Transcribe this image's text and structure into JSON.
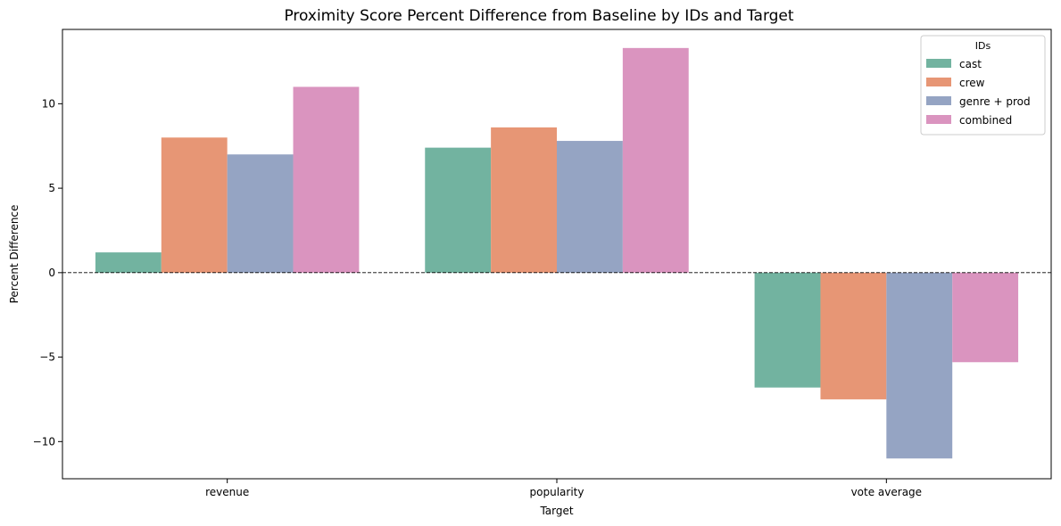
{
  "chart_data": {
    "type": "bar",
    "title": "Proximity Score Percent Difference from Baseline by IDs and Target",
    "xlabel": "Target",
    "ylabel": "Percent Difference",
    "categories": [
      "revenue",
      "popularity",
      "vote average"
    ],
    "series": [
      {
        "name": "cast",
        "color": "#72b3a0",
        "values": [
          1.2,
          7.4,
          -6.8
        ]
      },
      {
        "name": "crew",
        "color": "#e79675",
        "values": [
          8.0,
          8.6,
          -7.5
        ]
      },
      {
        "name": "genre + prod",
        "color": "#95a4c3",
        "values": [
          7.0,
          7.8,
          -11.0
        ]
      },
      {
        "name": "combined",
        "color": "#da94bf",
        "values": [
          11.0,
          13.3,
          -5.3
        ]
      }
    ],
    "ylim": [
      -12.2,
      14.4
    ],
    "yticks": [
      -10,
      -5,
      0,
      5,
      10
    ],
    "ytick_labels": [
      "−10",
      "−5",
      "0",
      "5",
      "10"
    ],
    "reference_line": {
      "y": 0,
      "style": "dashed"
    },
    "legend": {
      "title": "IDs",
      "placement": "top-right"
    },
    "grid": false
  }
}
